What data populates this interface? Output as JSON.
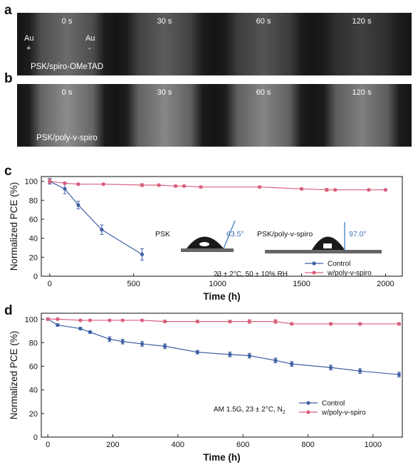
{
  "panels": {
    "a": {
      "letter": "a",
      "frames": [
        {
          "time": "0 s",
          "brightness": 0.42
        },
        {
          "time": "30 s",
          "brightness": 0.36
        },
        {
          "time": "60 s",
          "brightness": 0.33
        },
        {
          "time": "120 s",
          "brightness": 0.25
        }
      ],
      "electrode_left": "Au",
      "electrode_left_sign": "+",
      "electrode_right": "Au",
      "electrode_right_sign": "-",
      "caption": "PSK/spiro-OMeTAD"
    },
    "b": {
      "letter": "b",
      "frames": [
        {
          "time": "0 s",
          "brightness": 0.55
        },
        {
          "time": "30 s",
          "brightness": 0.53
        },
        {
          "time": "60 s",
          "brightness": 0.52
        },
        {
          "time": "120 s",
          "brightness": 0.5
        }
      ],
      "caption": "PSK/poly-v-spiro"
    },
    "c": {
      "letter": "c"
    },
    "d": {
      "letter": "d"
    }
  },
  "chart_data": [
    {
      "type": "line",
      "xlabel": "Time (h)",
      "ylabel": "Normalized PCE (%)",
      "xlim": [
        -50,
        2100
      ],
      "ylim": [
        0,
        105
      ],
      "xticks": [
        0,
        500,
        1000,
        1500,
        2000
      ],
      "yticks": [
        0,
        20,
        40,
        60,
        80,
        100
      ],
      "series": [
        {
          "name": "Control",
          "color": "#3d5fa3",
          "x": [
            0,
            90,
            170,
            310,
            550
          ],
          "y": [
            100,
            92,
            75,
            49,
            23
          ],
          "err": [
            3,
            5,
            4,
            5,
            6
          ]
        },
        {
          "name": "w/poly-v-spiro",
          "color": "#d9607d",
          "x": [
            0,
            90,
            170,
            320,
            550,
            650,
            750,
            800,
            900,
            1250,
            1500,
            1650,
            1700,
            1900,
            2000
          ],
          "y": [
            100,
            98,
            97,
            97,
            96,
            96,
            95,
            95,
            94,
            94,
            92,
            91,
            91,
            91,
            91
          ],
          "err": [
            2,
            1,
            1,
            1,
            1.5,
            1,
            1,
            1,
            1,
            1,
            1,
            1.5,
            1,
            1,
            1
          ]
        }
      ],
      "annotations": {
        "condition": "23 ± 2°C, 50 ± 10% RH",
        "inset_left_label": "PSK",
        "inset_left_angle": "63.5°",
        "inset_right_label": "PSK/poly-v-spiro",
        "inset_right_angle": "97.0°"
      }
    },
    {
      "type": "line",
      "xlabel": "Time (h)",
      "ylabel": "Normalized PCE (%)",
      "xlim": [
        -20,
        1090
      ],
      "ylim": [
        0,
        105
      ],
      "xticks": [
        0,
        200,
        400,
        600,
        800,
        1000
      ],
      "yticks": [
        0,
        20,
        40,
        60,
        80,
        100
      ],
      "series": [
        {
          "name": "Control",
          "color": "#3d5fa3",
          "x": [
            0,
            30,
            100,
            130,
            190,
            230,
            290,
            360,
            460,
            560,
            620,
            700,
            750,
            870,
            960,
            1080
          ],
          "y": [
            100,
            95,
            92,
            89,
            83,
            81,
            79,
            77,
            72,
            70,
            69,
            65,
            62,
            59,
            56,
            53
          ],
          "err": [
            1,
            1,
            1,
            1,
            2,
            2,
            2,
            2,
            1.5,
            2,
            2,
            2,
            2,
            2,
            2,
            2
          ]
        },
        {
          "name": "w/poly-v-spiro",
          "color": "#d9607d",
          "x": [
            0,
            30,
            100,
            130,
            190,
            230,
            290,
            360,
            460,
            560,
            620,
            700,
            750,
            870,
            960,
            1080
          ],
          "y": [
            100,
            100,
            99,
            99,
            99,
            99,
            99,
            98,
            98,
            98,
            98,
            98,
            96,
            96,
            96,
            96
          ],
          "err": [
            0.5,
            0.5,
            0.5,
            0.5,
            0.5,
            0.5,
            0.5,
            1,
            1,
            1,
            1.5,
            1.5,
            1,
            1,
            1,
            1
          ]
        }
      ],
      "annotations": {
        "condition_main": "AM 1.5G, 23 ± 2°C, N",
        "condition_sub": "2"
      }
    }
  ]
}
